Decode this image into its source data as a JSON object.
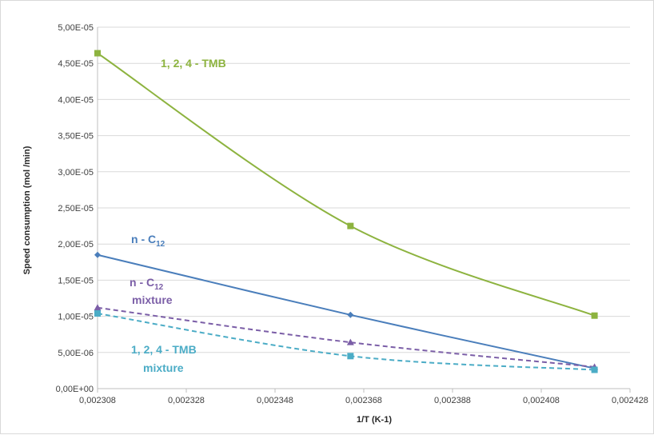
{
  "chart_data": {
    "type": "line",
    "xlabel": "1/T (K-1)",
    "ylabel": "Speed consumption (mol /min)",
    "xlim": [
      0.002308,
      0.002428
    ],
    "ylim": [
      0,
      5e-05
    ],
    "x_ticks": [
      0.002308,
      0.002328,
      0.002348,
      0.002368,
      0.002388,
      0.002408,
      0.002428
    ],
    "x_tick_labels": [
      "0,002308",
      "0,002328",
      "0,002348",
      "0,002368",
      "0,002388",
      "0,002408",
      "0,002428"
    ],
    "y_ticks": [
      0,
      5e-06,
      1e-05,
      1.5e-05,
      2e-05,
      2.5e-05,
      3e-05,
      3.5e-05,
      4e-05,
      4.5e-05,
      5e-05
    ],
    "y_tick_labels": [
      "0,00E+00",
      "5,00E-06",
      "1,00E-05",
      "1,50E-05",
      "2,00E-05",
      "2,50E-05",
      "3,00E-05",
      "3,50E-05",
      "4,00E-05",
      "4,50E-05",
      "5,00E-05"
    ],
    "grid": "horizontal",
    "series": [
      {
        "name": "1, 2, 4 - TMB",
        "color": "#8db33f",
        "marker": "square",
        "dashed": false,
        "x": [
          0.002308,
          0.002365,
          0.00242
        ],
        "y": [
          4.64e-05,
          2.25e-05,
          1.01e-05
        ]
      },
      {
        "name": "n - C12",
        "color": "#4a7ebb",
        "marker": "diamond",
        "dashed": false,
        "x": [
          0.002308,
          0.002365,
          0.00242
        ],
        "y": [
          1.85e-05,
          1.02e-05,
          2.8e-06
        ]
      },
      {
        "name": "n - C12 mixture",
        "color": "#7b5ea7",
        "marker": "triangle",
        "dashed": true,
        "x": [
          0.002308,
          0.002365,
          0.00242
        ],
        "y": [
          1.12e-05,
          6.4e-06,
          3e-06
        ]
      },
      {
        "name": "1, 2, 4 - TMB mixture",
        "color": "#4bacc6",
        "marker": "square",
        "dashed": true,
        "x": [
          0.002308,
          0.002365,
          0.00242
        ],
        "y": [
          1.04e-05,
          4.5e-06,
          2.6e-06
        ]
      }
    ]
  }
}
